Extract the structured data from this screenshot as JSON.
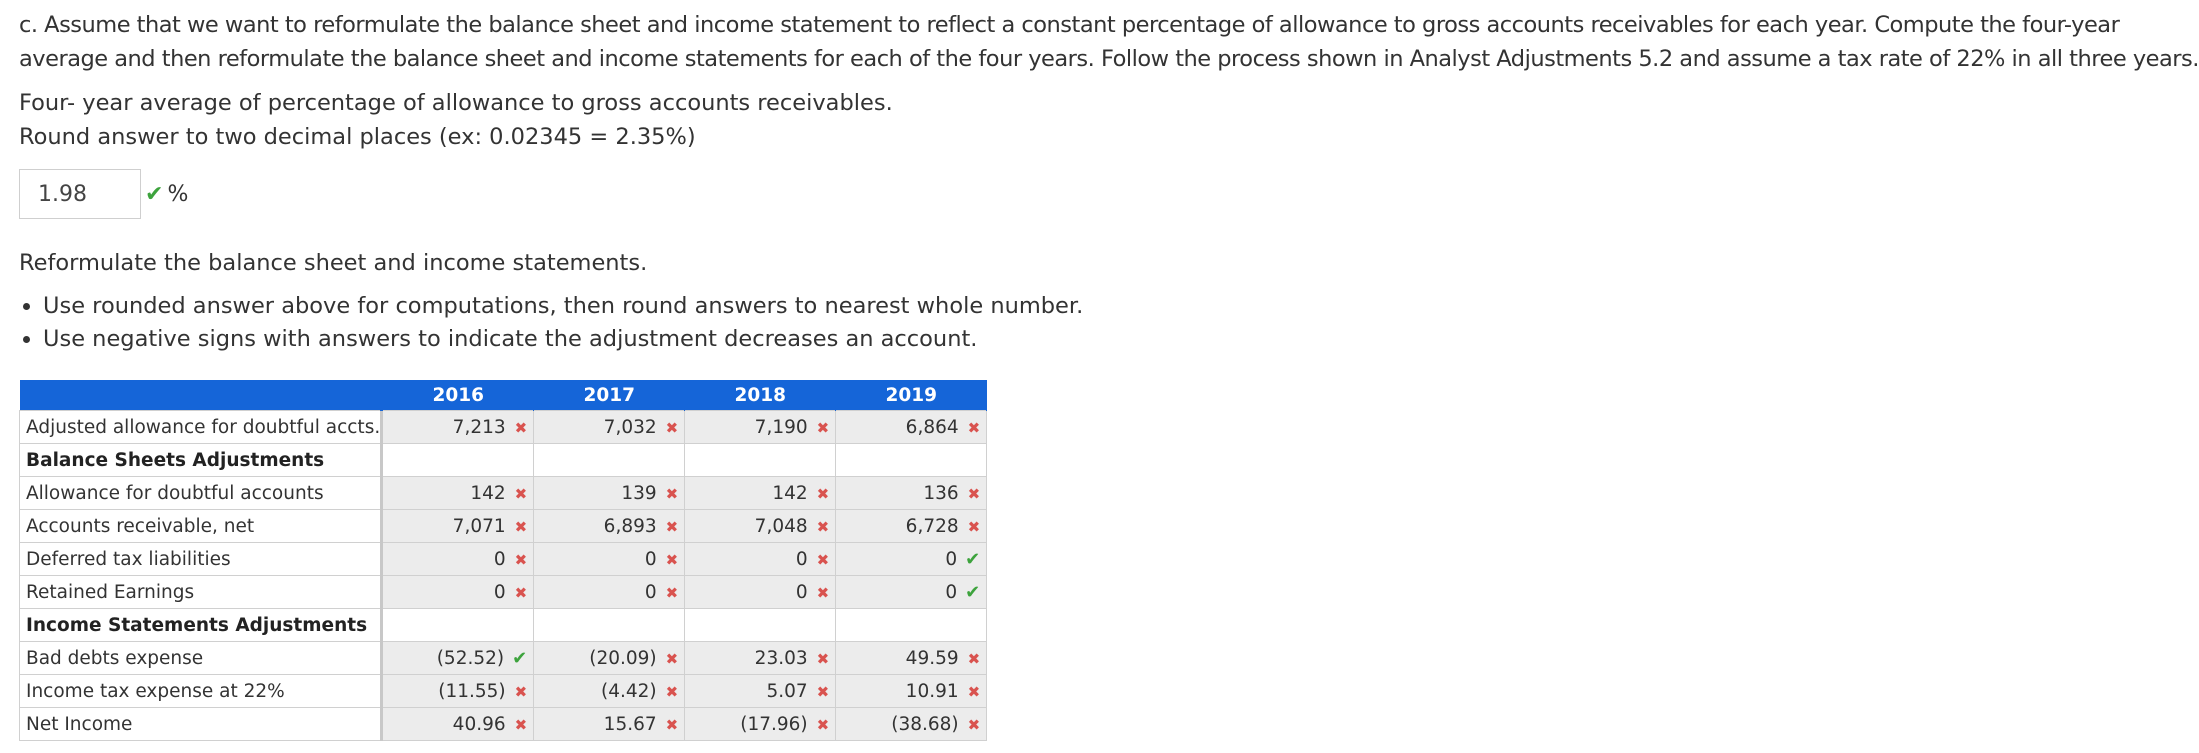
{
  "question": "c. Assume that we want to reformulate the balance sheet and income statement to reflect a constant percentage of allowance to gross accounts receivables for each year. Compute the four-year average and then reformulate the balance sheet and income statements for each of the four years. Follow the process shown in Analyst Adjustments 5.2 and assume a tax rate of 22% in all three years.",
  "question_line1": "c. Assume that we want to reformulate the balance sheet and income statement to reflect a constant percentage of allowance to gross accounts receivables for each year. Compute the four-year",
  "question_line2": "average and then reformulate the balance sheet and income statements for each of the four years. Follow the process shown in Analyst Adjustments 5.2 and assume a tax rate of 22% in all three years.",
  "average_prompt": "Four- year average of percentage of allowance to gross accounts receivables.",
  "rounding_note": "Round answer to two decimal places (ex: 0.02345 = 2.35%)",
  "answer": {
    "value": "1.98",
    "unit": "%",
    "status": "check"
  },
  "reformulate_prompt": "Reformulate the balance sheet and income statements.",
  "bullets": [
    "Use rounded answer above for computations, then round answers to nearest whole number.",
    "Use negative signs with answers to indicate the adjustment decreases an account."
  ],
  "table": {
    "headers": [
      "2016",
      "2017",
      "2018",
      "2019"
    ],
    "rows": [
      {
        "label": "Adjusted allowance for doubtful accts.",
        "section": false,
        "cells": [
          {
            "v": "7,213",
            "s": "cross"
          },
          {
            "v": "7,032",
            "s": "cross"
          },
          {
            "v": "7,190",
            "s": "cross"
          },
          {
            "v": "6,864",
            "s": "cross"
          }
        ]
      },
      {
        "label": "Balance Sheets Adjustments",
        "section": true,
        "cells": [
          {
            "v": "",
            "s": ""
          },
          {
            "v": "",
            "s": ""
          },
          {
            "v": "",
            "s": ""
          },
          {
            "v": "",
            "s": ""
          }
        ]
      },
      {
        "label": "Allowance for doubtful accounts",
        "section": false,
        "cells": [
          {
            "v": "142",
            "s": "cross"
          },
          {
            "v": "139",
            "s": "cross"
          },
          {
            "v": "142",
            "s": "cross"
          },
          {
            "v": "136",
            "s": "cross"
          }
        ]
      },
      {
        "label": "Accounts receivable, net",
        "section": false,
        "cells": [
          {
            "v": "7,071",
            "s": "cross"
          },
          {
            "v": "6,893",
            "s": "cross"
          },
          {
            "v": "7,048",
            "s": "cross"
          },
          {
            "v": "6,728",
            "s": "cross"
          }
        ]
      },
      {
        "label": "Deferred tax liabilities",
        "section": false,
        "cells": [
          {
            "v": "0",
            "s": "cross"
          },
          {
            "v": "0",
            "s": "cross"
          },
          {
            "v": "0",
            "s": "cross"
          },
          {
            "v": "0",
            "s": "check"
          }
        ]
      },
      {
        "label": "Retained Earnings",
        "section": false,
        "cells": [
          {
            "v": "0",
            "s": "cross"
          },
          {
            "v": "0",
            "s": "cross"
          },
          {
            "v": "0",
            "s": "cross"
          },
          {
            "v": "0",
            "s": "check"
          }
        ]
      },
      {
        "label": "Income Statements Adjustments",
        "section": true,
        "cells": [
          {
            "v": "",
            "s": ""
          },
          {
            "v": "",
            "s": ""
          },
          {
            "v": "",
            "s": ""
          },
          {
            "v": "",
            "s": ""
          }
        ]
      },
      {
        "label": "Bad debts expense",
        "section": false,
        "cells": [
          {
            "v": "(52.52)",
            "s": "check"
          },
          {
            "v": "(20.09)",
            "s": "cross"
          },
          {
            "v": "23.03",
            "s": "cross"
          },
          {
            "v": "49.59",
            "s": "cross"
          }
        ]
      },
      {
        "label": "Income tax expense at 22%",
        "section": false,
        "cells": [
          {
            "v": "(11.55)",
            "s": "cross"
          },
          {
            "v": "(4.42)",
            "s": "cross"
          },
          {
            "v": "5.07",
            "s": "cross"
          },
          {
            "v": "10.91",
            "s": "cross"
          }
        ]
      },
      {
        "label": "Net Income",
        "section": false,
        "cells": [
          {
            "v": "40.96",
            "s": "cross"
          },
          {
            "v": "15.67",
            "s": "cross"
          },
          {
            "v": "(17.96)",
            "s": "cross"
          },
          {
            "v": "(38.68)",
            "s": "cross"
          }
        ]
      }
    ]
  },
  "colors": {
    "header_bg": "#1565d8",
    "check": "#3da33d",
    "cross": "#d9534f",
    "cell_bg": "#ececec"
  },
  "icons": {
    "check": "checkmark-icon",
    "cross": "x-mark-icon"
  }
}
